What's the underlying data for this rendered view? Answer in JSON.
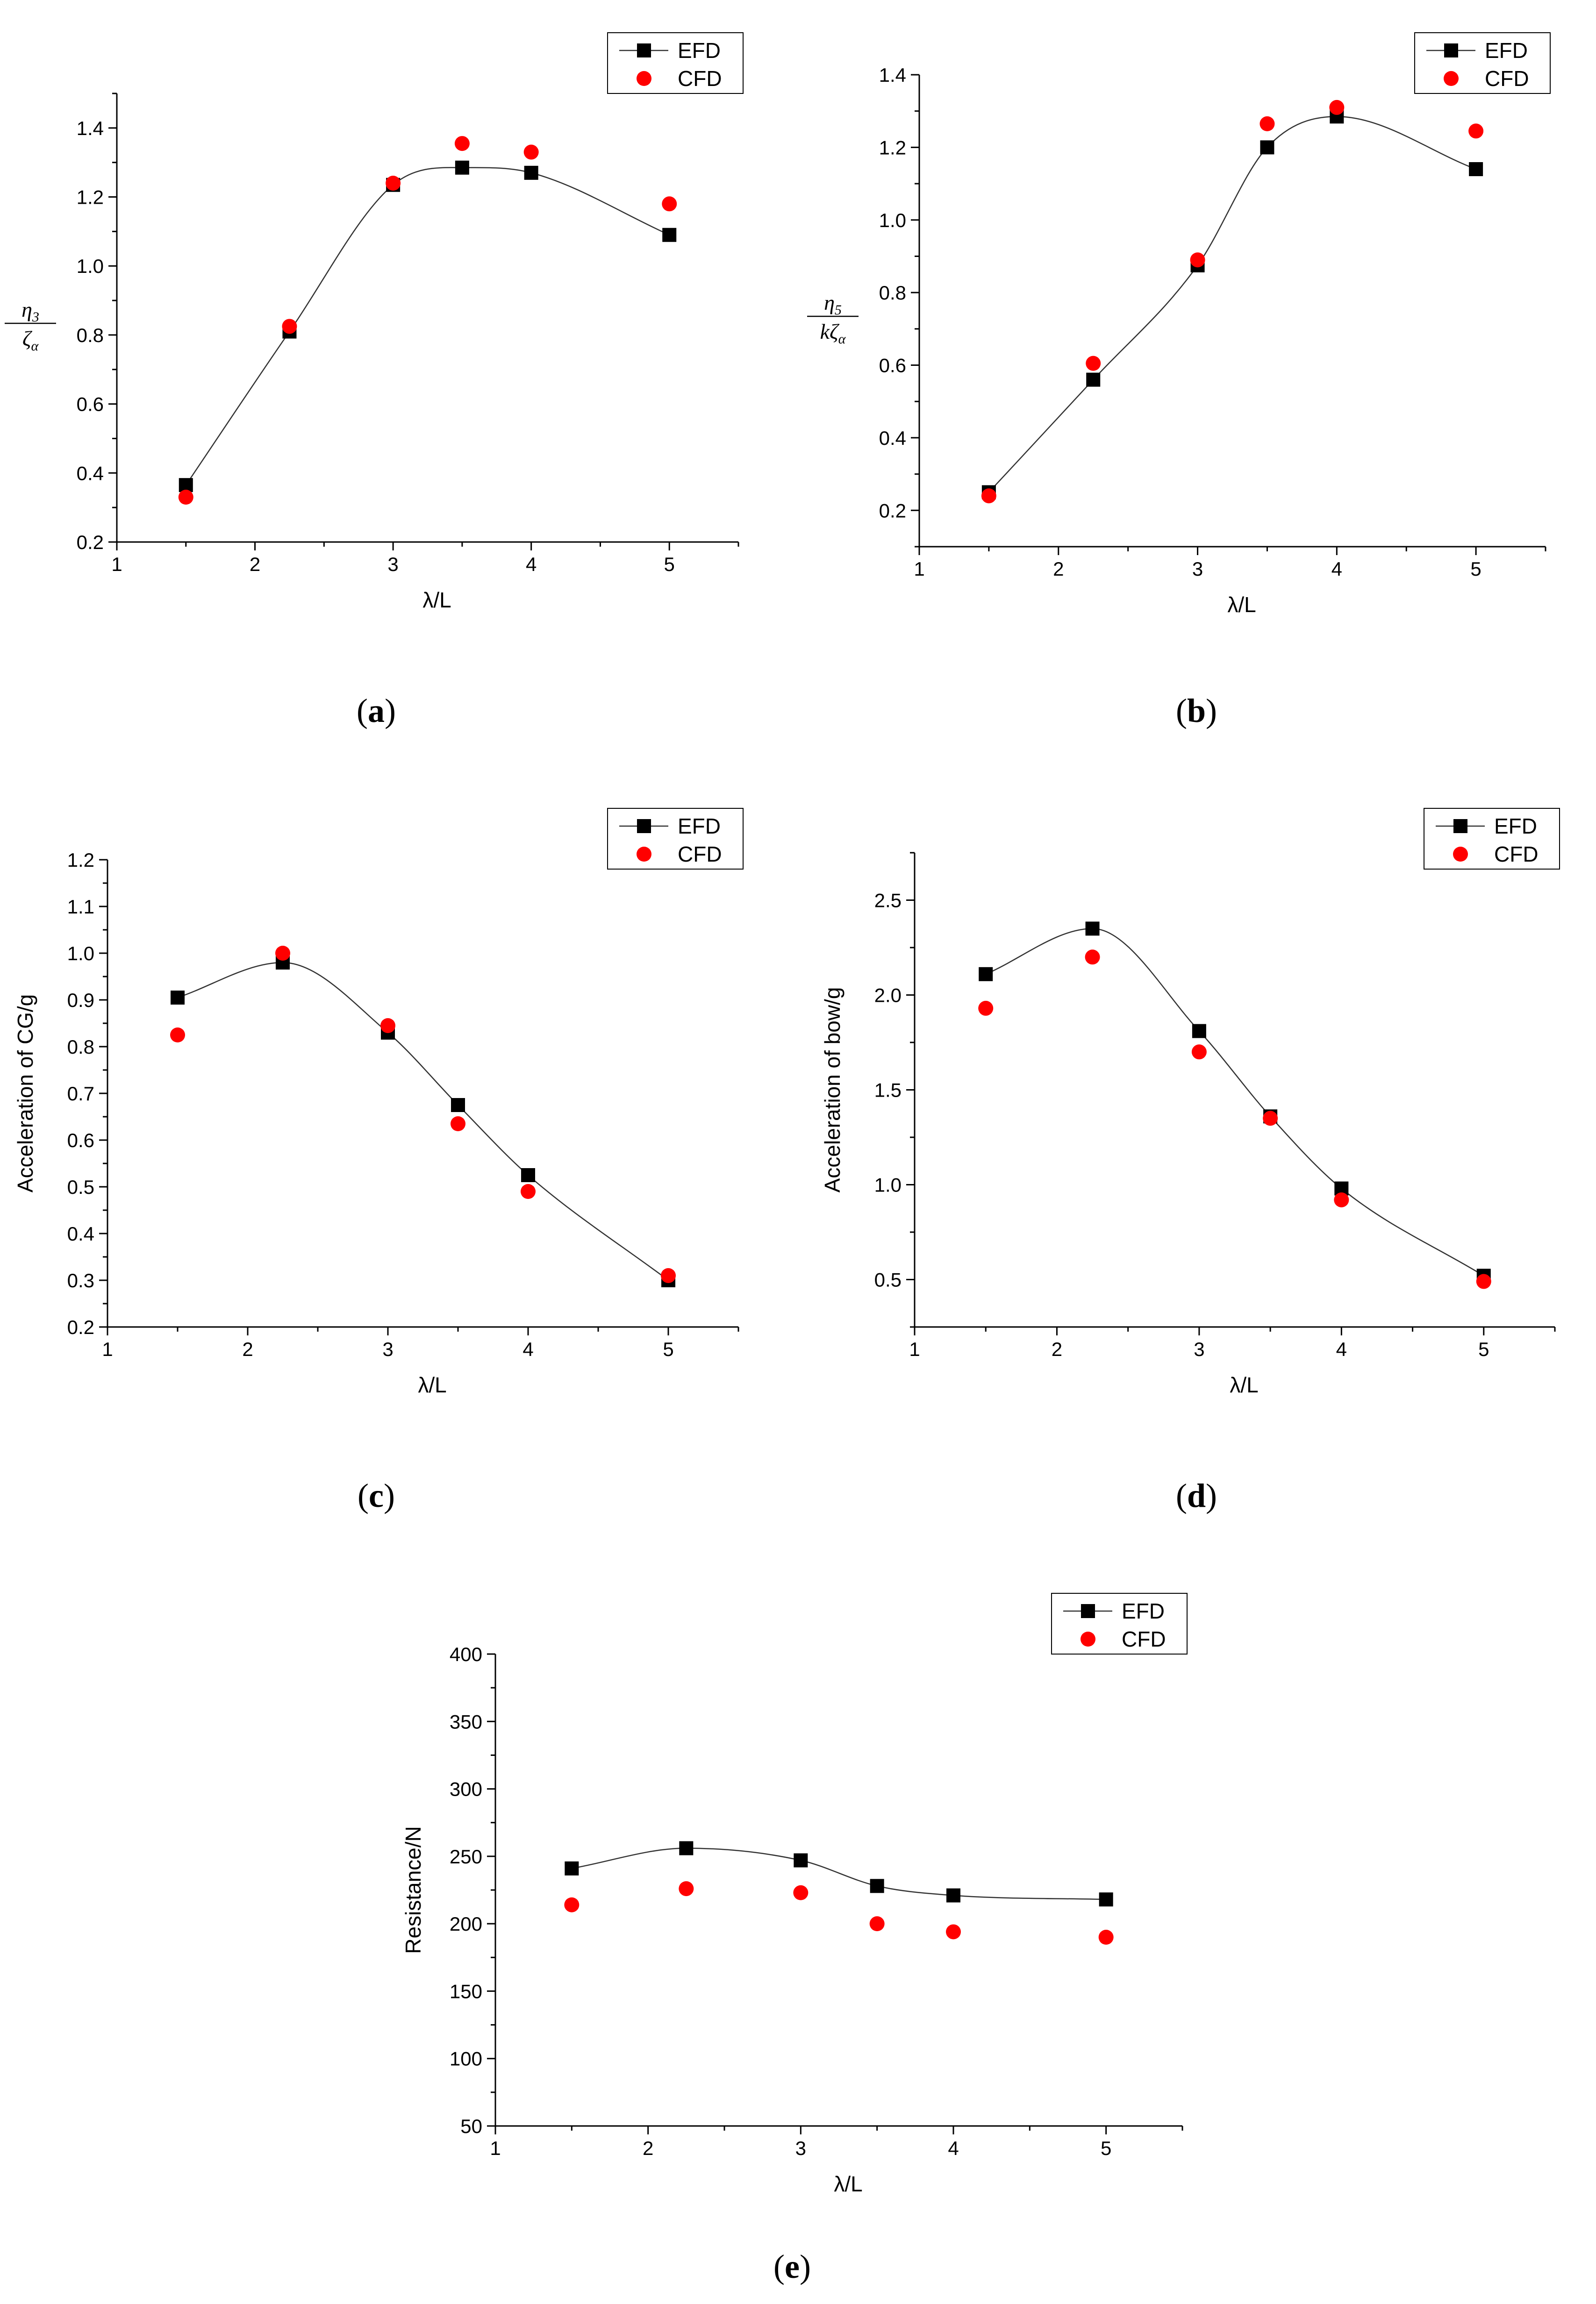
{
  "chart_data": [
    {
      "id": "a",
      "type": "scatter",
      "caption": "a",
      "xlabel": "λ/L",
      "ylabel_fraction": {
        "numerator": "η",
        "numerator_sub": "3",
        "denominator": "ζ",
        "denominator_sub": "α"
      },
      "xlim": [
        1,
        5.5
      ],
      "ylim": [
        0.2,
        1.5
      ],
      "xticks": [
        1,
        2,
        3,
        4,
        5
      ],
      "yticks": [
        0.2,
        0.4,
        0.6,
        0.8,
        1.0,
        1.2,
        1.4
      ],
      "ytick_labels": [
        "0.2",
        "0.4",
        "0.6",
        "0.8",
        "1.0",
        "1.2",
        "1.4"
      ],
      "legend": {
        "position": "top-right",
        "entries": [
          "EFD",
          "CFD"
        ]
      },
      "series": [
        {
          "name": "EFD",
          "marker": "square",
          "color": "#000000",
          "line": true,
          "x": [
            1.5,
            2.25,
            3,
            3.5,
            4,
            5
          ],
          "y": [
            0.365,
            0.81,
            1.235,
            1.285,
            1.27,
            1.09
          ]
        },
        {
          "name": "CFD",
          "marker": "circle",
          "color": "#ff0000",
          "line": false,
          "x": [
            1.5,
            2.25,
            3,
            3.5,
            4,
            5
          ],
          "y": [
            0.33,
            0.825,
            1.24,
            1.355,
            1.33,
            1.18
          ]
        }
      ]
    },
    {
      "id": "b",
      "type": "scatter",
      "caption": "b",
      "xlabel": "λ/L",
      "ylabel_fraction": {
        "numerator": "η",
        "numerator_sub": "5",
        "denominator": "kζ",
        "denominator_sub": "α"
      },
      "xlim": [
        1,
        5.5
      ],
      "ylim": [
        0.1,
        1.4
      ],
      "xticks": [
        1,
        2,
        3,
        4,
        5
      ],
      "yticks": [
        0.2,
        0.4,
        0.6,
        0.8,
        1.0,
        1.2,
        1.4
      ],
      "ytick_labels": [
        "0.2",
        "0.4",
        "0.6",
        "0.8",
        "1.0",
        "1.2",
        "1.4"
      ],
      "legend": {
        "position": "top-right",
        "entries": [
          "EFD",
          "CFD"
        ]
      },
      "series": [
        {
          "name": "EFD",
          "marker": "square",
          "color": "#000000",
          "line": true,
          "x": [
            1.5,
            2.25,
            3,
            3.5,
            4,
            5
          ],
          "y": [
            0.25,
            0.56,
            0.875,
            1.2,
            1.285,
            1.14
          ]
        },
        {
          "name": "CFD",
          "marker": "circle",
          "color": "#ff0000",
          "line": false,
          "x": [
            1.5,
            2.25,
            3,
            3.5,
            4,
            5
          ],
          "y": [
            0.24,
            0.605,
            0.89,
            1.265,
            1.31,
            1.245
          ]
        }
      ]
    },
    {
      "id": "c",
      "type": "scatter",
      "caption": "c",
      "xlabel": "λ/L",
      "ylabel": "Acceleration of CG/g",
      "xlim": [
        1,
        5.5
      ],
      "ylim": [
        0.2,
        1.2
      ],
      "xticks": [
        1,
        2,
        3,
        4,
        5
      ],
      "yticks": [
        0.2,
        0.3,
        0.4,
        0.5,
        0.6,
        0.7,
        0.8,
        0.9,
        1.0,
        1.1,
        1.2
      ],
      "ytick_labels": [
        "0.2",
        "0.3",
        "0.4",
        "0.5",
        "0.6",
        "0.7",
        "0.8",
        "0.9",
        "1.0",
        "1.1",
        "1.2"
      ],
      "legend": {
        "position": "top-right",
        "entries": [
          "EFD",
          "CFD"
        ]
      },
      "series": [
        {
          "name": "EFD",
          "marker": "square",
          "color": "#000000",
          "line": true,
          "x": [
            1.5,
            2.25,
            3,
            3.5,
            4,
            5
          ],
          "y": [
            0.905,
            0.98,
            0.83,
            0.675,
            0.525,
            0.3
          ]
        },
        {
          "name": "CFD",
          "marker": "circle",
          "color": "#ff0000",
          "line": false,
          "x": [
            1.5,
            2.25,
            3,
            3.5,
            4,
            5
          ],
          "y": [
            0.825,
            1.0,
            0.845,
            0.635,
            0.49,
            0.31
          ]
        }
      ]
    },
    {
      "id": "d",
      "type": "scatter",
      "caption": "d",
      "xlabel": "λ/L",
      "ylabel": "Acceleration of bow/g",
      "xlim": [
        1,
        5.5
      ],
      "ylim": [
        0.25,
        2.75
      ],
      "xticks": [
        1,
        2,
        3,
        4,
        5
      ],
      "yticks": [
        0.5,
        1.0,
        1.5,
        2.0,
        2.5
      ],
      "ytick_labels": [
        "0.5",
        "1.0",
        "1.5",
        "2.0",
        "2.5"
      ],
      "legend": {
        "position": "top-right",
        "entries": [
          "EFD",
          "CFD"
        ]
      },
      "series": [
        {
          "name": "EFD",
          "marker": "square",
          "color": "#000000",
          "line": true,
          "x": [
            1.5,
            2.25,
            3,
            3.5,
            4,
            5
          ],
          "y": [
            2.11,
            2.35,
            1.81,
            1.36,
            0.98,
            0.52
          ]
        },
        {
          "name": "CFD",
          "marker": "circle",
          "color": "#ff0000",
          "line": false,
          "x": [
            1.5,
            2.25,
            3,
            3.5,
            4,
            5
          ],
          "y": [
            1.93,
            2.2,
            1.7,
            1.35,
            0.92,
            0.49
          ]
        }
      ]
    },
    {
      "id": "e",
      "type": "scatter",
      "caption": "e",
      "xlabel": "λ/L",
      "ylabel": "Resistance/N",
      "xlim": [
        1,
        5.5
      ],
      "ylim": [
        50,
        400
      ],
      "xticks": [
        1,
        2,
        3,
        4,
        5
      ],
      "yticks": [
        50,
        100,
        150,
        200,
        250,
        300,
        350,
        400
      ],
      "ytick_labels": [
        "50",
        "100",
        "150",
        "200",
        "250",
        "300",
        "350",
        "400"
      ],
      "legend": {
        "position": "top-right",
        "entries": [
          "EFD",
          "CFD"
        ]
      },
      "series": [
        {
          "name": "EFD",
          "marker": "square",
          "color": "#000000",
          "line": true,
          "x": [
            1.5,
            2.25,
            3,
            3.5,
            4,
            5
          ],
          "y": [
            241,
            256,
            247,
            228,
            221,
            218
          ]
        },
        {
          "name": "CFD",
          "marker": "circle",
          "color": "#ff0000",
          "line": false,
          "x": [
            1.5,
            2.25,
            3,
            3.5,
            4,
            5
          ],
          "y": [
            214,
            226,
            223,
            200,
            194,
            190
          ]
        }
      ]
    }
  ]
}
